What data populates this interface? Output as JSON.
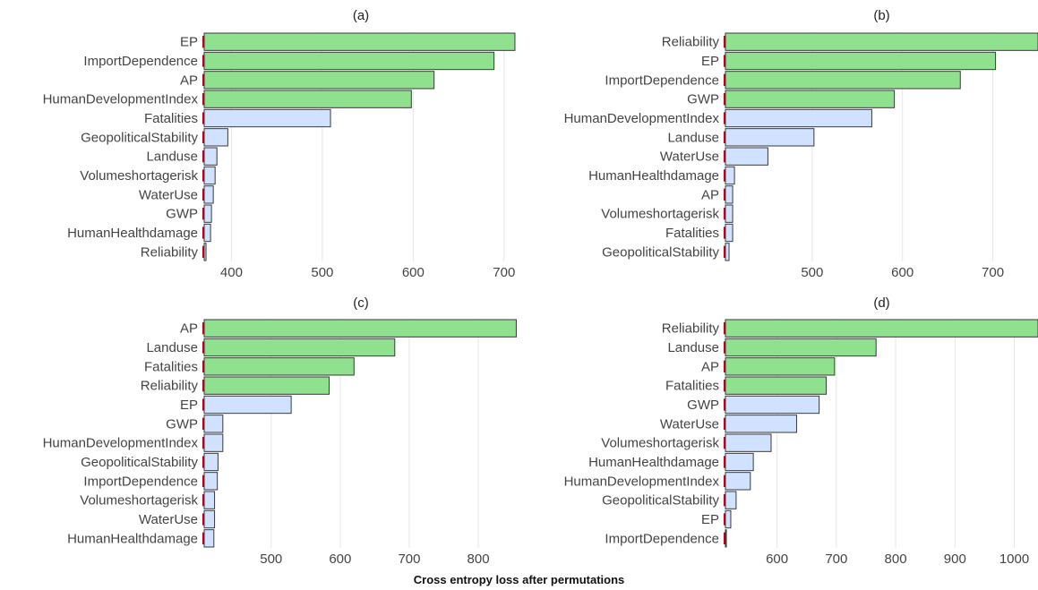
{
  "figure": {
    "xlabel": "Cross entropy loss after permutations",
    "colors": {
      "important": "#8fe08f",
      "other": "#d0e2ff",
      "baseline_marker": "#c0001a"
    }
  },
  "chart_data": [
    {
      "type": "bar",
      "orientation": "horizontal",
      "title": "(a)",
      "categories": [
        "EP",
        "ImportDependence",
        "AP",
        "HumanDevelopmentIndex",
        "Fatalities",
        "GeopoliticalStability",
        "Landuse",
        "Volumeshortagerisk",
        "WaterUse",
        "GWP",
        "HumanHealthdamage",
        "Reliability"
      ],
      "values": [
        712,
        689,
        623,
        598,
        509,
        396,
        384,
        382,
        380,
        378,
        377,
        372
      ],
      "highlighted": [
        true,
        true,
        true,
        true,
        false,
        false,
        false,
        false,
        false,
        false,
        false,
        false
      ],
      "xlim": [
        370,
        715
      ],
      "xticks": [
        400,
        500,
        600,
        700
      ],
      "grid": true
    },
    {
      "type": "bar",
      "orientation": "horizontal",
      "title": "(b)",
      "categories": [
        "Reliability",
        "EP",
        "ImportDependence",
        "GWP",
        "HumanDevelopmentIndex",
        "Landuse",
        "WaterUse",
        "HumanHealthdamage",
        "AP",
        "Volumeshortagerisk",
        "Fatalities",
        "GeopoliticalStability"
      ],
      "values": [
        750,
        703,
        664,
        591,
        566,
        502,
        451,
        414,
        412,
        412,
        412,
        408
      ],
      "highlighted": [
        true,
        true,
        true,
        true,
        false,
        false,
        false,
        false,
        false,
        false,
        false,
        false
      ],
      "xlim": [
        404,
        750
      ],
      "xticks": [
        500,
        600,
        700
      ],
      "grid": true
    },
    {
      "type": "bar",
      "orientation": "horizontal",
      "title": "(c)",
      "categories": [
        "AP",
        "Landuse",
        "Fatalities",
        "Reliability",
        "EP",
        "GWP",
        "HumanDevelopmentIndex",
        "GeopoliticalStability",
        "ImportDependence",
        "Volumeshortagerisk",
        "WaterUse",
        "HumanHealthdamage"
      ],
      "values": [
        855,
        679,
        620,
        584,
        529,
        430,
        430,
        423,
        422,
        418,
        418,
        417
      ],
      "highlighted": [
        true,
        true,
        true,
        true,
        false,
        false,
        false,
        false,
        false,
        false,
        false,
        false
      ],
      "xlim": [
        403,
        857
      ],
      "xticks": [
        500,
        600,
        700,
        800
      ],
      "grid": true
    },
    {
      "type": "bar",
      "orientation": "horizontal",
      "title": "(d)",
      "categories": [
        "Reliability",
        "Landuse",
        "AP",
        "Fatalities",
        "GWP",
        "WaterUse",
        "Volumeshortagerisk",
        "HumanHealthdamage",
        "HumanDevelopmentIndex",
        "GeopoliticalStability",
        "EP",
        "ImportDependence"
      ],
      "values": [
        1040,
        767,
        697,
        683,
        671,
        633,
        590,
        560,
        555,
        531,
        522,
        514
      ],
      "highlighted": [
        true,
        true,
        true,
        true,
        false,
        false,
        false,
        false,
        false,
        false,
        false,
        false
      ],
      "xlim": [
        513,
        1040
      ],
      "xticks": [
        600,
        700,
        800,
        900,
        1000
      ],
      "grid": true
    }
  ]
}
